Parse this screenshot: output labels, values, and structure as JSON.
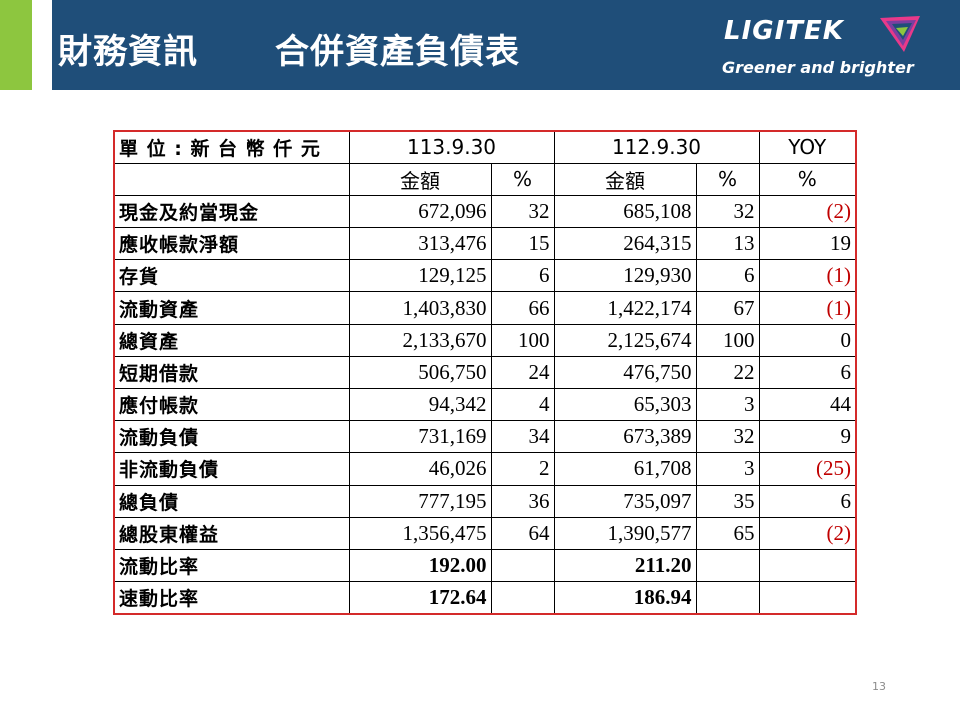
{
  "header": {
    "section": "財務資訊",
    "title": "合併資產負債表"
  },
  "logo": {
    "name": "LIGITEK",
    "tagline": "Greener and brighter"
  },
  "table": {
    "unit_label": "單 位 : 新 台 幣 仟 元",
    "period_current": "113.9.30",
    "period_prior": "112.9.30",
    "yoy_label": "YOY",
    "sub_amount": "金額",
    "sub_pct": "%",
    "rows": [
      {
        "label": "現金及約當現金",
        "cur": "672,096",
        "cur_pct": "32",
        "prior": "685,108",
        "prior_pct": "32",
        "yoy": "(2)"
      },
      {
        "label": "應收帳款淨額",
        "cur": "313,476",
        "cur_pct": "15",
        "prior": "264,315",
        "prior_pct": "13",
        "yoy": "19"
      },
      {
        "label": "存貨",
        "cur": "129,125",
        "cur_pct": "6",
        "prior": "129,930",
        "prior_pct": "6",
        "yoy": "(1)"
      },
      {
        "label": "流動資產",
        "cur": "1,403,830",
        "cur_pct": "66",
        "prior": "1,422,174",
        "prior_pct": "67",
        "yoy": "(1)"
      },
      {
        "label": "總資產",
        "cur": "2,133,670",
        "cur_pct": "100",
        "prior": "2,125,674",
        "prior_pct": "100",
        "yoy": "0"
      },
      {
        "label": "短期借款",
        "cur": "506,750",
        "cur_pct": "24",
        "prior": "476,750",
        "prior_pct": "22",
        "yoy": "6"
      },
      {
        "label": "應付帳款",
        "cur": "94,342",
        "cur_pct": "4",
        "prior": "65,303",
        "prior_pct": "3",
        "yoy": "44"
      },
      {
        "label": "流動負債",
        "cur": "731,169",
        "cur_pct": "34",
        "prior": "673,389",
        "prior_pct": "32",
        "yoy": "9"
      },
      {
        "label": "非流動負債",
        "cur": "46,026",
        "cur_pct": "2",
        "prior": "61,708",
        "prior_pct": "3",
        "yoy": "(25)"
      },
      {
        "label": "總負債",
        "cur": "777,195",
        "cur_pct": "36",
        "prior": "735,097",
        "prior_pct": "35",
        "yoy": "6"
      },
      {
        "label": "總股東權益",
        "cur": "1,356,475",
        "cur_pct": "64",
        "prior": "1,390,577",
        "prior_pct": "65",
        "yoy": "(2)"
      }
    ],
    "ratios": [
      {
        "label": "流動比率",
        "cur": "192.00",
        "prior": "211.20"
      },
      {
        "label": "速動比率",
        "cur": "172.64",
        "prior": "186.94"
      }
    ]
  },
  "page_number": "13",
  "colors": {
    "header_bg": "#1f4e79",
    "accent": "#8dc63f",
    "negative": "#c00000",
    "table_border": "#d42a2a"
  }
}
